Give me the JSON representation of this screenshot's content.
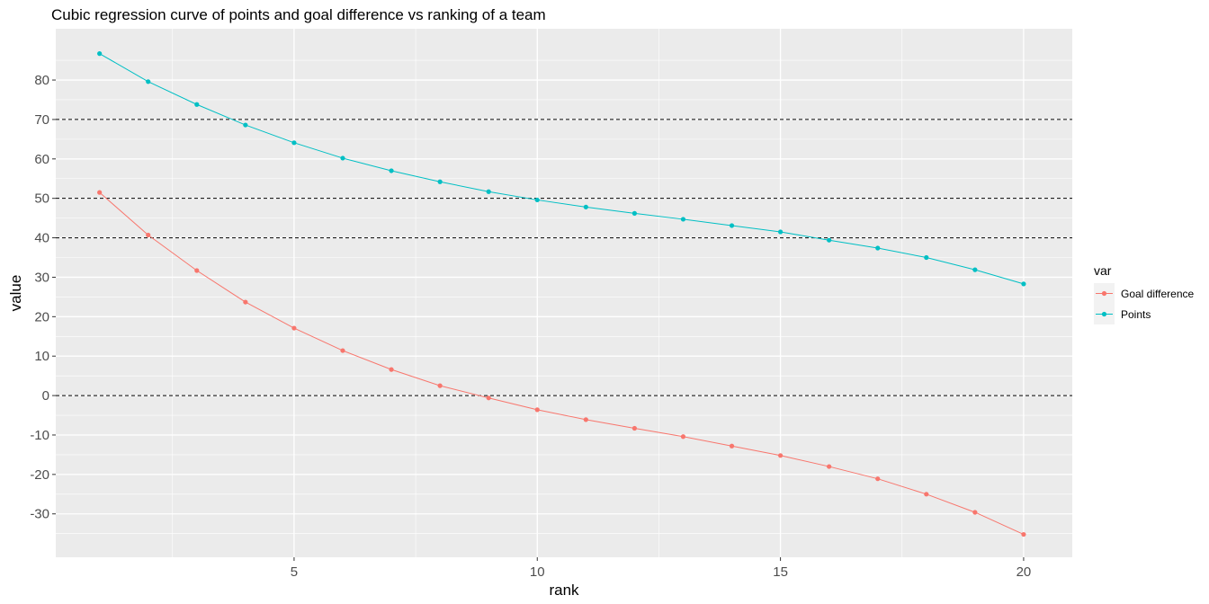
{
  "chart_data": {
    "type": "line",
    "title": "Cubic regression curve of points and goal difference vs ranking of a team",
    "xlabel": "rank",
    "ylabel": "value",
    "xlim": [
      0.1,
      21
    ],
    "ylim": [
      -41,
      93
    ],
    "x_ticks": [
      5,
      10,
      15,
      20
    ],
    "y_ticks": [
      -30,
      -20,
      -10,
      0,
      10,
      20,
      30,
      40,
      50,
      60,
      70,
      80
    ],
    "x_tick_labels": [
      "5",
      "10",
      "15",
      "20"
    ],
    "y_tick_labels": [
      "-30",
      "-20",
      "-10",
      "0",
      "10",
      "20",
      "30",
      "40",
      "50",
      "60",
      "70",
      "80"
    ],
    "grid": true,
    "background": "#ebebeb",
    "hlines": [
      0,
      40,
      50,
      70
    ],
    "legend": {
      "title": "var",
      "position": "right"
    },
    "x": [
      1,
      2,
      3,
      4,
      5,
      6,
      7,
      8,
      9,
      10,
      11,
      12,
      13,
      14,
      15,
      16,
      17,
      18,
      19,
      20
    ],
    "series": [
      {
        "name": "Goal difference",
        "color": "#f8766d",
        "values": [
          51.5,
          40.7,
          31.7,
          23.7,
          17.1,
          11.4,
          6.6,
          2.5,
          -0.6,
          -3.6,
          -6.1,
          -8.3,
          -10.4,
          -12.8,
          -15.2,
          -18.0,
          -21.1,
          -25.0,
          -29.6,
          -35.2
        ]
      },
      {
        "name": "Points",
        "color": "#00bfc4",
        "values": [
          86.7,
          79.6,
          73.8,
          68.6,
          64.1,
          60.2,
          57.0,
          54.2,
          51.7,
          49.6,
          47.8,
          46.2,
          44.7,
          43.1,
          41.5,
          39.4,
          37.4,
          35.0,
          31.9,
          28.3
        ]
      }
    ]
  }
}
